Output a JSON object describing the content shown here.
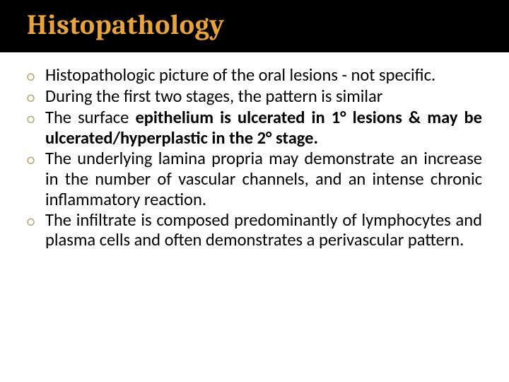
{
  "title": {
    "text": "Histopathology",
    "color": "#e8a33d",
    "background": "#000000"
  },
  "bullet_marker_color": "#b6a46a",
  "bullet_glyph": "○",
  "text_color": "#000000",
  "bullets": [
    {
      "plain1": "Histopathologic picture of the oral lesions - not specific.",
      "bold": "",
      "plain2": ""
    },
    {
      "plain1": "During the first two stages, the pattern is similar",
      "bold": "",
      "plain2": ""
    },
    {
      "plain1": "The surface ",
      "bold": "epithelium is ulcerated in 1° lesions & may be ulcerated/hyperplastic in the 2° stage.",
      "plain2": ""
    },
    {
      "plain1": "The underlying lamina propria may demonstrate an increase in the number of vascular channels, and an intense chronic inflammatory reaction.",
      "bold": "",
      "plain2": ""
    },
    {
      "plain1": "The infiltrate is composed predominantly of lymphocytes and plasma cells and often demonstrates a perivascular pattern.",
      "bold": "",
      "plain2": ""
    }
  ]
}
